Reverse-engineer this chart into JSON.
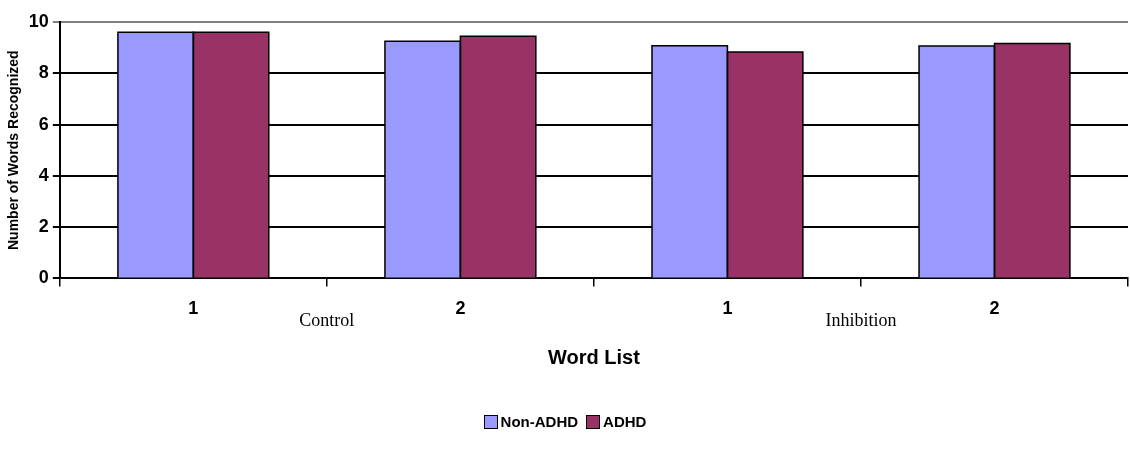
{
  "chart_data": {
    "type": "bar",
    "xlabel": "Word List",
    "ylabel": "Number of Words Recognized",
    "categories": [
      "1",
      "2",
      "1",
      "2"
    ],
    "series": [
      {
        "name": "Non-ADHD",
        "color": "#9999ff",
        "values": [
          9.6,
          9.25,
          9.07,
          9.06
        ]
      },
      {
        "name": "ADHD",
        "color": "#993366",
        "values": [
          9.6,
          9.44,
          8.83,
          9.16
        ]
      }
    ],
    "ylim": [
      0,
      10
    ],
    "yticks": [
      0,
      2,
      4,
      6,
      8,
      10
    ],
    "grid": "y",
    "legend": "bottom",
    "annotations": [
      "Control",
      "Inhibition"
    ]
  }
}
